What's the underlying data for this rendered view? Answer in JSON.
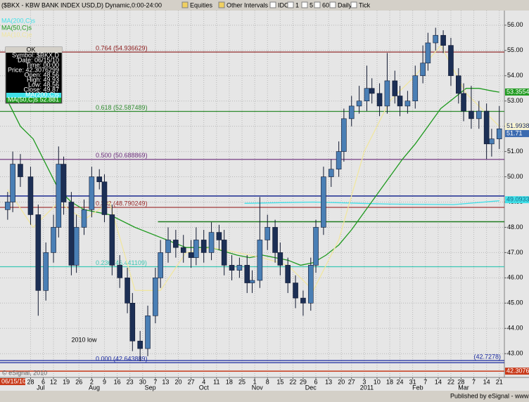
{
  "toolbar": {
    "buttons": [
      "Equities",
      "Other Intervals",
      "IDC",
      "1",
      "5",
      "60",
      "Daily",
      "Tick"
    ]
  },
  "chart_data": {
    "type": "candlestick",
    "title": "($BKX - KBW BANK INDEX USD,D) Dynamic,0:00-24:00",
    "x": [
      0,
      2,
      5,
      9,
      12,
      15,
      18,
      20,
      22,
      25,
      27,
      30,
      33,
      36,
      38,
      41,
      44,
      47,
      49,
      52,
      55,
      58,
      60,
      63,
      66,
      69,
      72,
      74,
      77,
      80,
      83,
      85,
      88,
      91,
      94,
      96,
      99,
      102,
      105,
      107,
      110,
      113,
      116,
      119,
      121,
      124,
      127,
      130,
      132,
      135,
      138,
      141,
      143,
      146,
      149,
      152,
      154,
      157,
      160,
      163,
      165,
      168,
      171,
      174,
      177,
      179,
      182,
      185,
      188,
      190,
      193
    ],
    "open": [
      48.7,
      49,
      50.5,
      50,
      48.5,
      45.5,
      47,
      48,
      50.5,
      49,
      46.5,
      48,
      48.7,
      50,
      49.8,
      48.5,
      46.5,
      46,
      45,
      43.5,
      43.2,
      44.5,
      46,
      47,
      47.5,
      47.2,
      47,
      46.8,
      47.5,
      47,
      47.8,
      47.5,
      46.5,
      46.3,
      46.5,
      45.8,
      45.9,
      47.5,
      48,
      47,
      46.5,
      45.8,
      45.2,
      45,
      46.5,
      48,
      50,
      50.3,
      51,
      52.3,
      52.8,
      53,
      53.5,
      53.3,
      52.8,
      53.8,
      53.2,
      52.8,
      53,
      54,
      54.5,
      55.3,
      55.6,
      55.2,
      54,
      53.3,
      52.6,
      52.3,
      52.6,
      51.3,
      51.5
    ],
    "high": [
      49.4,
      51,
      50.9,
      50.4,
      48.9,
      47.4,
      48.5,
      51.2,
      50.8,
      49.4,
      48.5,
      49.1,
      50.4,
      50.3,
      50.1,
      48.9,
      46.9,
      46.4,
      45.4,
      43.9,
      44.9,
      46.4,
      47.5,
      48,
      47.9,
      47.7,
      47.5,
      48,
      47.9,
      48.2,
      48.1,
      47.9,
      46.9,
      46.8,
      46.9,
      46.3,
      49.2,
      48.5,
      48.3,
      47.4,
      46.8,
      46.1,
      45.5,
      46.8,
      48.3,
      50.4,
      50.7,
      51.4,
      52.7,
      53.2,
      53.6,
      54.4,
      53.9,
      53.7,
      54.9,
      54.2,
      53.6,
      53.4,
      54.4,
      55.2,
      55.7,
      55.9,
      55.8,
      55.5,
      54.3,
      53.7,
      53.6,
      53,
      52.9,
      51.9,
      52.8
    ],
    "low": [
      48.3,
      48.6,
      49.6,
      48.1,
      44.5,
      45.1,
      46.6,
      47.6,
      48.5,
      46.1,
      46.2,
      47.7,
      48.4,
      49.5,
      48.2,
      46.1,
      45.6,
      44.6,
      43.1,
      42.7,
      42.9,
      44.2,
      45.6,
      46.6,
      46.8,
      46.6,
      46.4,
      46.5,
      46.6,
      46.7,
      47.1,
      46.1,
      45.9,
      46,
      45.4,
      45.4,
      45.6,
      47.1,
      46.6,
      46.1,
      45.4,
      44.8,
      44.5,
      44.7,
      46.2,
      47.7,
      49.6,
      50,
      50.6,
      52,
      52.5,
      52.6,
      52.9,
      52.4,
      52.5,
      52.9,
      52.4,
      52.5,
      52.7,
      53.7,
      54.2,
      55,
      54.9,
      53.6,
      52.9,
      52.2,
      51.9,
      51.9,
      50.7,
      50.8,
      51.1
    ],
    "close": [
      49,
      50.5,
      50,
      48.5,
      45.5,
      47,
      48,
      50.5,
      49,
      46.5,
      48,
      48.7,
      50,
      49.8,
      48.5,
      46.5,
      46,
      45,
      43.5,
      43.2,
      44.5,
      46,
      47,
      47.5,
      47.2,
      47,
      46.8,
      47.5,
      47,
      47.8,
      47.5,
      46.5,
      46.3,
      46.5,
      45.8,
      45.9,
      47.5,
      48,
      47,
      46.5,
      45.8,
      45.2,
      45,
      46.5,
      48,
      50,
      50.3,
      51,
      52.3,
      52.8,
      53,
      53.5,
      53.3,
      52.8,
      53.8,
      53.2,
      52.8,
      53,
      54,
      54.5,
      55.3,
      55.6,
      55.2,
      54,
      53.3,
      52.6,
      52.3,
      52.6,
      51.3,
      51.5,
      51.9
    ],
    "up_color": "#4a7fb5",
    "down_color": "#1c2f55",
    "series": [
      {
        "name": "MA(200,C)s",
        "color": "#40e0e8",
        "x": [
          93,
          120,
          150,
          175,
          193
        ],
        "values": [
          48.95,
          49.0,
          48.92,
          48.9,
          49.05
        ]
      },
      {
        "name": "MA(50,C)s",
        "color": "#1f9a1f",
        "x": [
          0,
          5,
          10,
          15,
          20,
          25,
          30,
          40,
          50,
          60,
          70,
          80,
          90,
          95,
          100,
          105,
          110,
          115,
          120,
          125,
          130,
          135,
          140,
          145,
          150,
          155,
          160,
          165,
          170,
          175,
          180,
          185,
          190,
          193
        ],
        "values": [
          53,
          52,
          51.5,
          50.5,
          49.5,
          49,
          48.7,
          48.5,
          48,
          47.6,
          47.2,
          47.2,
          46.9,
          46.8,
          46.9,
          46.8,
          46.7,
          46.5,
          46.6,
          46.9,
          47.3,
          47.9,
          48.6,
          49.3,
          50,
          50.7,
          51.3,
          52,
          52.7,
          53.1,
          53.5,
          53.5,
          53.4,
          53.35
        ]
      },
      {
        "name": "MA(10,C)e",
        "color": "#f0e6a0",
        "x": [
          0,
          10,
          20,
          30,
          40,
          50,
          60,
          70,
          80,
          90,
          100,
          110,
          120,
          130,
          140,
          150,
          160,
          170,
          180,
          190,
          193
        ],
        "values": [
          49.5,
          48,
          49,
          48.3,
          49,
          45.5,
          45.5,
          47,
          47.2,
          47,
          46.8,
          46.5,
          45.5,
          47.5,
          51,
          53,
          54,
          55.2,
          53.3,
          52.3,
          52
        ]
      }
    ],
    "levels": [
      {
        "label": "0.764 (54.936629)",
        "value": 54.936629,
        "color": "#8b1a1a"
      },
      {
        "label": "0.618 (52.587489)",
        "value": 52.587489,
        "color": "#2e8b2e"
      },
      {
        "label": "0.500 (50.688869)",
        "value": 50.688869,
        "color": "#6a2a7a"
      },
      {
        "label": "0.382 (48.790249)",
        "value": 48.790249,
        "color": "#9a2a2a"
      },
      {
        "label": "0.236 (46.441109)",
        "value": 46.441109,
        "color": "#3cc8b4"
      },
      {
        "label": "0.000 (42.643889)",
        "value": 42.643889,
        "color": "#1a2aa0"
      },
      {
        "label": "(42.7278)",
        "value": 42.7278,
        "color": "#1a2aa0"
      }
    ],
    "lines": [
      {
        "value": 49.24,
        "color": "#1a2a90",
        "x_start": -3
      },
      {
        "value": 48.22,
        "color": "#1e7a1e",
        "x_start": 59
      },
      {
        "value": 42.30763,
        "color": "#c83a1a",
        "x_start": -3
      }
    ],
    "axis_markers": [
      {
        "value": 53.3554,
        "color": "#1f9a1f",
        "text_color": "#ffffff"
      },
      {
        "value": 51.99387,
        "color": "#f8f4d0",
        "text_color": "#1a2a6a"
      },
      {
        "value": 51.71,
        "color": "#3a6ab0",
        "text_color": "#ffffff"
      },
      {
        "value": 49.0933,
        "color": "#40e0e8",
        "text_color": "#1a6a8a"
      },
      {
        "value": 42.30763,
        "color": "#c83a1a",
        "text_color": "#ffffff"
      }
    ],
    "annotation": "2010 low",
    "annotation_x": 30,
    "annotation_y": 43.2,
    "xlim": [
      -3,
      195
    ],
    "ylim": [
      42.06,
      56.58
    ],
    "yticks": [
      {
        "value": 43,
        "label": "43.00"
      },
      {
        "value": 44,
        "label": "44.00"
      },
      {
        "value": 45,
        "label": "45.00"
      },
      {
        "value": 46,
        "label": "46.00"
      },
      {
        "value": 47,
        "label": "47.00"
      },
      {
        "value": 48,
        "label": "48.00"
      },
      {
        "value": 49,
        "label": "49.00"
      },
      {
        "value": 50,
        "label": "50.00"
      },
      {
        "value": 51,
        "label": "51.00"
      },
      {
        "value": 52,
        "label": "52.00"
      },
      {
        "value": 53,
        "label": "53.00"
      },
      {
        "value": 54,
        "label": "54.00"
      },
      {
        "value": 55,
        "label": "55.00"
      },
      {
        "value": 56,
        "label": "56.00"
      }
    ],
    "xticks": [
      {
        "value": 9,
        "label": "28"
      },
      {
        "value": 14,
        "label": "6"
      },
      {
        "value": 18,
        "label": "12"
      },
      {
        "value": 23,
        "label": "19"
      },
      {
        "value": 28,
        "label": "26"
      },
      {
        "value": 33,
        "label": "2"
      },
      {
        "value": 38,
        "label": "9"
      },
      {
        "value": 43,
        "label": "16"
      },
      {
        "value": 48,
        "label": "23"
      },
      {
        "value": 53,
        "label": "30"
      },
      {
        "value": 58,
        "label": "7"
      },
      {
        "value": 62,
        "label": "13"
      },
      {
        "value": 67,
        "label": "20"
      },
      {
        "value": 72,
        "label": "27"
      },
      {
        "value": 77,
        "label": "4"
      },
      {
        "value": 82,
        "label": "11"
      },
      {
        "value": 87,
        "label": "18"
      },
      {
        "value": 92,
        "label": "25"
      },
      {
        "value": 97,
        "label": "1"
      },
      {
        "value": 102,
        "label": "8"
      },
      {
        "value": 107,
        "label": "15"
      },
      {
        "value": 112,
        "label": "22"
      },
      {
        "value": 116,
        "label": "29"
      },
      {
        "value": 121,
        "label": "6"
      },
      {
        "value": 126,
        "label": "13"
      },
      {
        "value": 131,
        "label": "20"
      },
      {
        "value": 135,
        "label": "27"
      },
      {
        "value": 140,
        "label": "3"
      },
      {
        "value": 145,
        "label": "10"
      },
      {
        "value": 150,
        "label": "18"
      },
      {
        "value": 154,
        "label": "24"
      },
      {
        "value": 159,
        "label": "31"
      },
      {
        "value": 164,
        "label": "7"
      },
      {
        "value": 169,
        "label": "14"
      },
      {
        "value": 174,
        "label": "22"
      },
      {
        "value": 178,
        "label": "28"
      },
      {
        "value": 183,
        "label": "7"
      },
      {
        "value": 188,
        "label": "14"
      },
      {
        "value": 193,
        "label": "21"
      }
    ],
    "month_ticks": [
      {
        "value": 13,
        "label": "Jul"
      },
      {
        "value": 34,
        "label": "Aug"
      },
      {
        "value": 56,
        "label": "Sep"
      },
      {
        "value": 77,
        "label": "Oct"
      },
      {
        "value": 98,
        "label": "Nov"
      },
      {
        "value": 119,
        "label": "Dec"
      },
      {
        "value": 141,
        "label": "2011"
      },
      {
        "value": 161,
        "label": "Feb"
      },
      {
        "value": 179,
        "label": "Mar"
      }
    ],
    "grid": true,
    "cursor_date": "06/15/10",
    "copyright": "© eSignal, 2010"
  },
  "infobox": {
    "title": "OK",
    "rows": [
      "Symbol: $BKX,D",
      "Date: 06/15/10",
      "Time: 00:00",
      "Price: 42.3076299",
      "Open: 48.56",
      "High: 49.93",
      "Low: 48.56",
      "Close: 49.87",
      "MA(200,C)s",
      "MA(50,C)s 52.881"
    ]
  },
  "status": "Published by eSignal - www.esignal.com"
}
